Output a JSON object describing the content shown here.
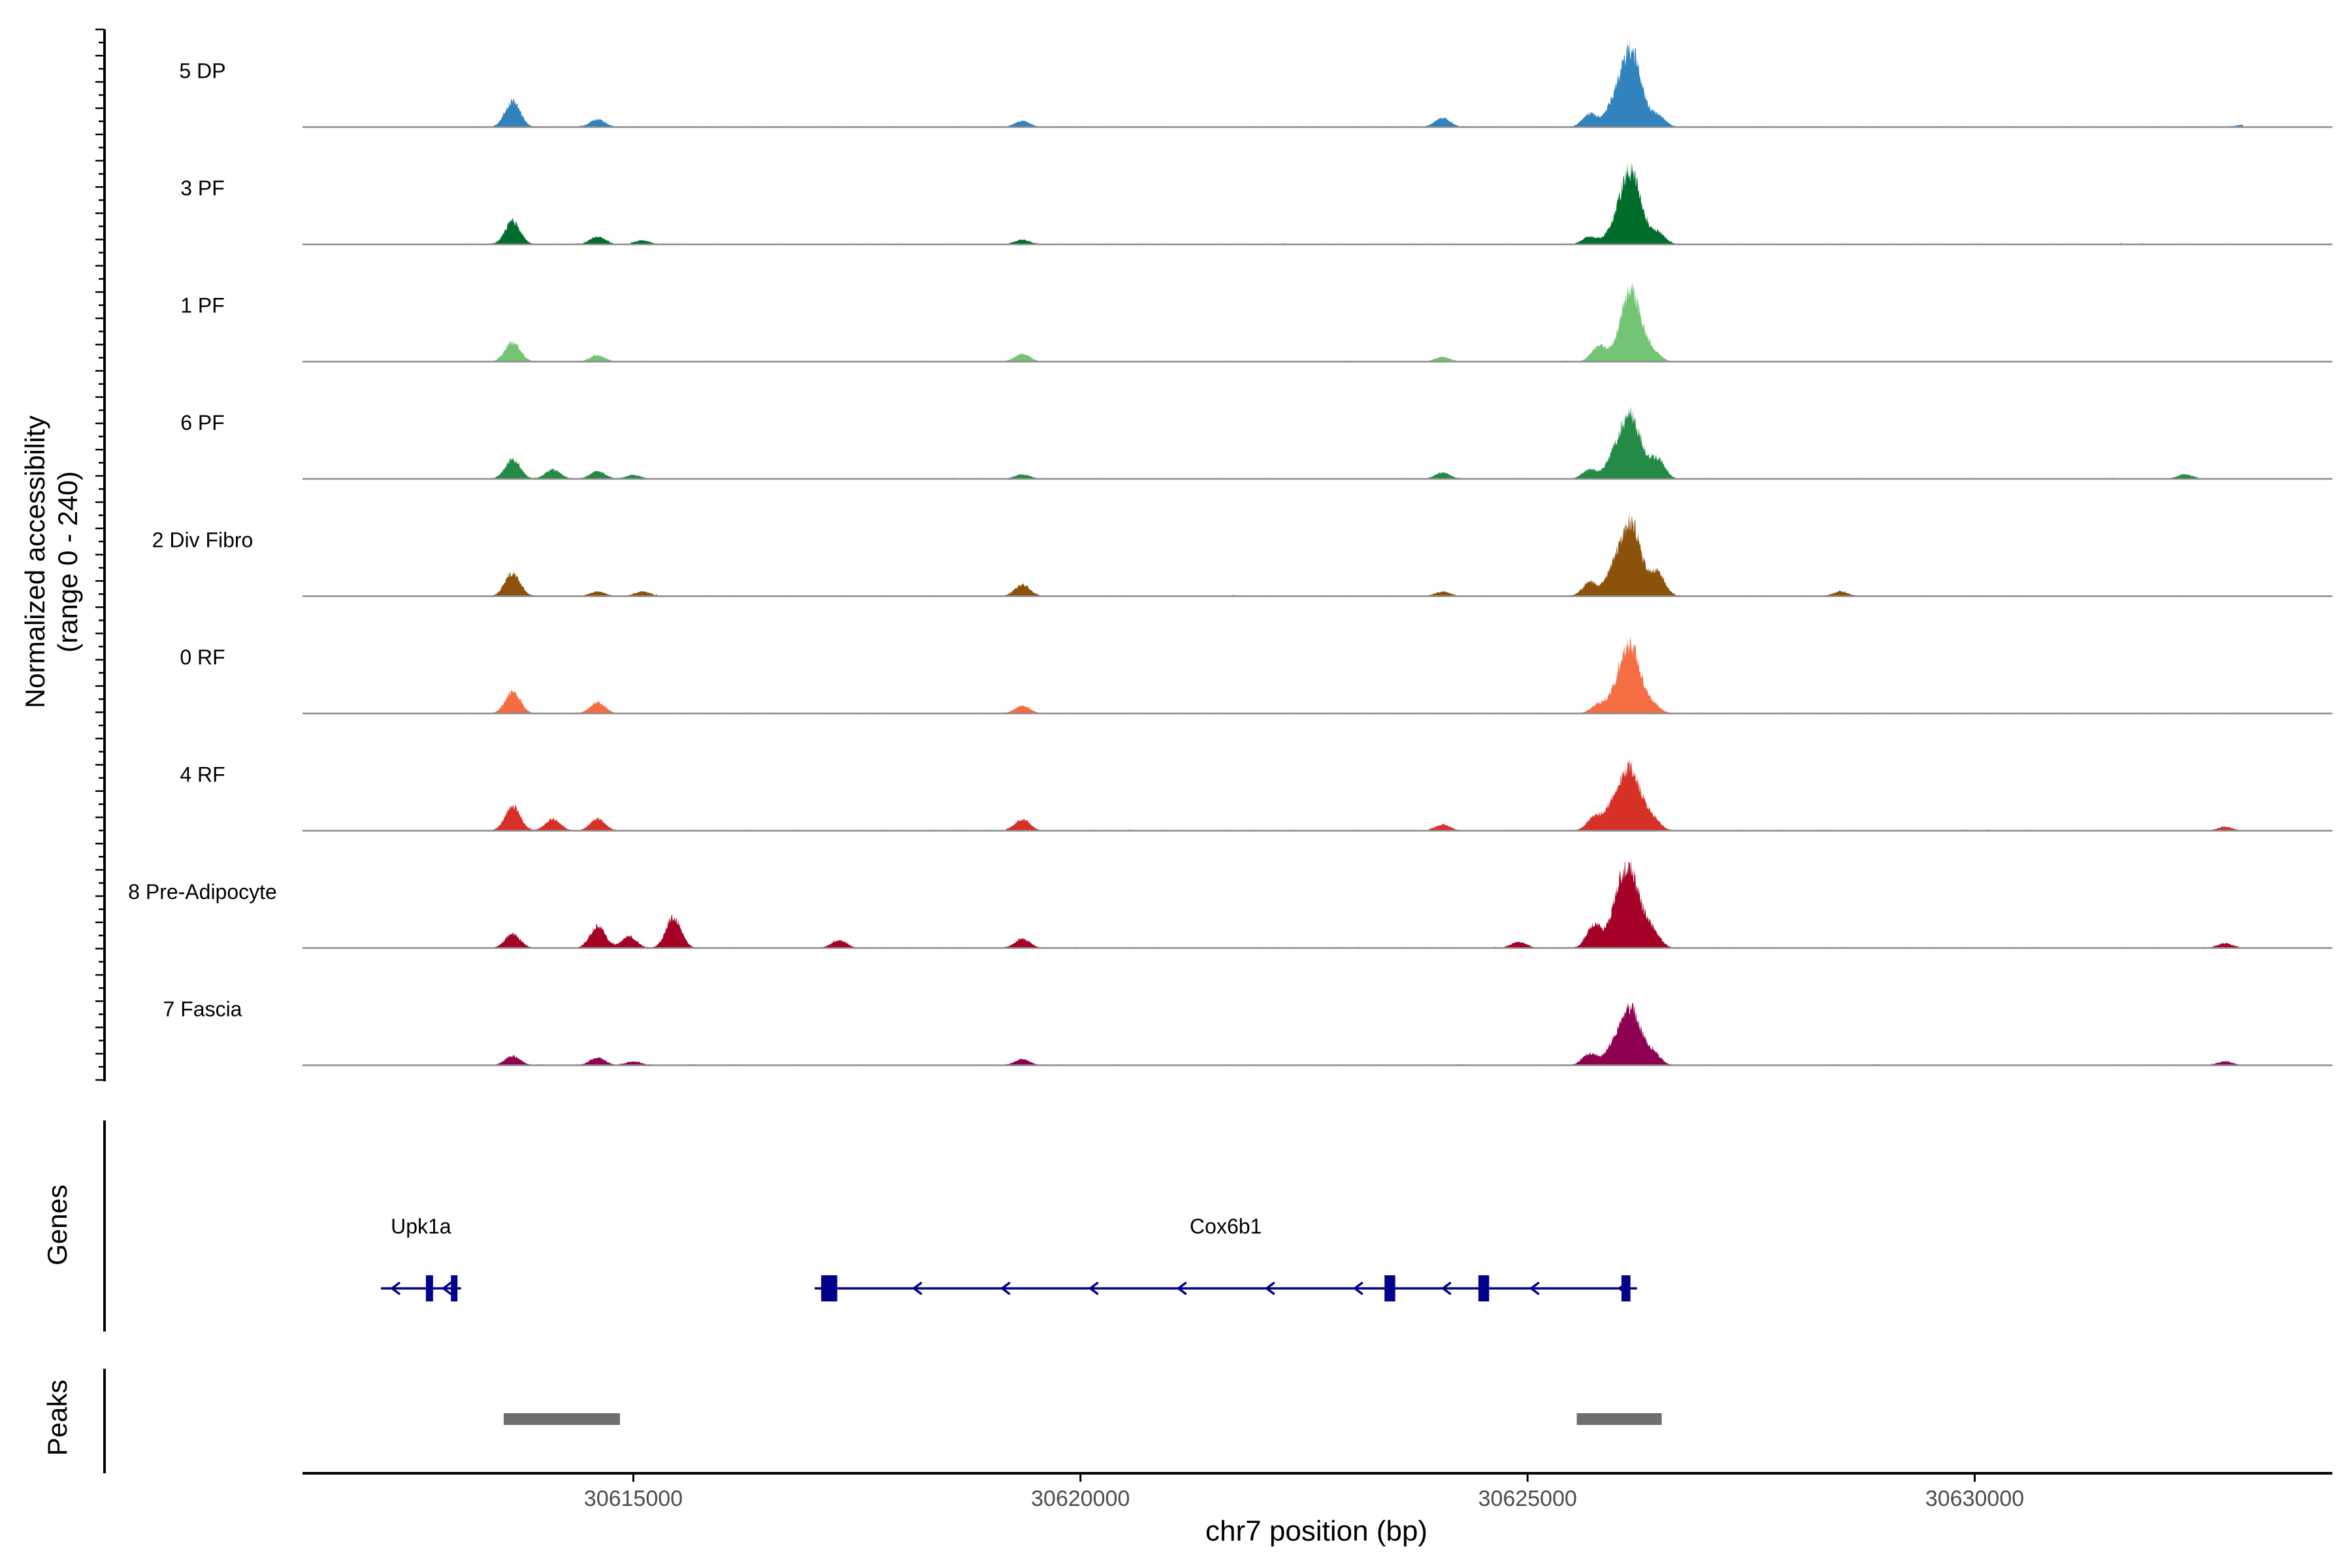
{
  "chart_data": {
    "type": "area",
    "ylabel_line1": "Normalized accessibility",
    "ylabel_line2": "(range 0 - 240)",
    "ylim": [
      0,
      240
    ],
    "xlabel": "chr7 position (bp)",
    "xlim": [
      30611300,
      30634000
    ],
    "x_ticks": [
      30615000,
      30620000,
      30625000,
      30630000
    ],
    "x_tick_labels": [
      "30615000",
      "30620000",
      "30625000",
      "30630000"
    ],
    "tracks": [
      {
        "name": "5 DP",
        "color": "#3182BD",
        "peaks": [
          [
            30613650,
            0.33
          ],
          [
            30614600,
            0.1
          ],
          [
            30619350,
            0.08
          ],
          [
            30624050,
            0.12
          ],
          [
            30625700,
            0.17
          ],
          [
            30625950,
            0.2
          ],
          [
            30626150,
            1.0
          ],
          [
            30626450,
            0.15
          ],
          [
            30633000,
            0.03
          ]
        ]
      },
      {
        "name": "3 PF",
        "color": "#006D2C",
        "peaks": [
          [
            30613650,
            0.3
          ],
          [
            30614600,
            0.1
          ],
          [
            30615100,
            0.05
          ],
          [
            30619350,
            0.06
          ],
          [
            30625700,
            0.1
          ],
          [
            30625950,
            0.12
          ],
          [
            30626150,
            0.95
          ],
          [
            30626450,
            0.15
          ]
        ]
      },
      {
        "name": "1 PF",
        "color": "#74C476",
        "peaks": [
          [
            30613650,
            0.25
          ],
          [
            30614600,
            0.08
          ],
          [
            30619350,
            0.1
          ],
          [
            30624050,
            0.06
          ],
          [
            30625800,
            0.2
          ],
          [
            30626150,
            0.92
          ],
          [
            30626400,
            0.12
          ]
        ]
      },
      {
        "name": "6 PF",
        "color": "#238B45",
        "peaks": [
          [
            30613650,
            0.25
          ],
          [
            30614100,
            0.12
          ],
          [
            30614600,
            0.1
          ],
          [
            30615000,
            0.05
          ],
          [
            30619350,
            0.06
          ],
          [
            30624050,
            0.08
          ],
          [
            30625700,
            0.12
          ],
          [
            30625950,
            0.2
          ],
          [
            30626150,
            0.82
          ],
          [
            30626450,
            0.25
          ],
          [
            30632350,
            0.06
          ]
        ]
      },
      {
        "name": "2 Div Fibro",
        "color": "#8C510A",
        "peaks": [
          [
            30613650,
            0.3
          ],
          [
            30614600,
            0.06
          ],
          [
            30615100,
            0.06
          ],
          [
            30619350,
            0.15
          ],
          [
            30624050,
            0.06
          ],
          [
            30625700,
            0.18
          ],
          [
            30625950,
            0.25
          ],
          [
            30626150,
            0.95
          ],
          [
            30626450,
            0.3
          ],
          [
            30628500,
            0.06
          ]
        ]
      },
      {
        "name": "0 RF",
        "color": "#F46D43",
        "peaks": [
          [
            30613650,
            0.28
          ],
          [
            30614600,
            0.14
          ],
          [
            30619350,
            0.1
          ],
          [
            30625800,
            0.12
          ],
          [
            30626000,
            0.15
          ],
          [
            30626150,
            0.85
          ],
          [
            30626400,
            0.1
          ]
        ]
      },
      {
        "name": "4 RF",
        "color": "#D73027",
        "peaks": [
          [
            30613650,
            0.32
          ],
          [
            30614100,
            0.15
          ],
          [
            30614600,
            0.15
          ],
          [
            30619350,
            0.15
          ],
          [
            30624050,
            0.08
          ],
          [
            30625750,
            0.18
          ],
          [
            30625950,
            0.25
          ],
          [
            30626150,
            0.8
          ],
          [
            30626400,
            0.15
          ],
          [
            30632800,
            0.05
          ]
        ]
      },
      {
        "name": "8 Pre-Adipocyte",
        "color": "#A50026",
        "peaks": [
          [
            30613650,
            0.18
          ],
          [
            30614600,
            0.28
          ],
          [
            30614950,
            0.15
          ],
          [
            30615450,
            0.4
          ],
          [
            30617300,
            0.1
          ],
          [
            30619350,
            0.12
          ],
          [
            30624900,
            0.08
          ],
          [
            30625750,
            0.3
          ],
          [
            30626000,
            0.35
          ],
          [
            30626150,
            0.95
          ],
          [
            30626400,
            0.2
          ],
          [
            30632800,
            0.06
          ]
        ]
      },
      {
        "name": "7 Fascia",
        "color": "#8E0152",
        "peaks": [
          [
            30613650,
            0.12
          ],
          [
            30614600,
            0.1
          ],
          [
            30615000,
            0.05
          ],
          [
            30619350,
            0.08
          ],
          [
            30625700,
            0.15
          ],
          [
            30625950,
            0.18
          ],
          [
            30626150,
            0.73
          ],
          [
            30626400,
            0.15
          ],
          [
            30632800,
            0.05
          ]
        ]
      }
    ],
    "genes_label": "Genes",
    "genes": [
      {
        "name": "Upk1a",
        "start": 30612250,
        "end": 30613000,
        "strand": "-",
        "exons": [
          [
            30612680,
            30612760
          ],
          [
            30612960,
            30613000
          ]
        ]
      },
      {
        "name": "Cox6b1",
        "start": 30617100,
        "end": 30626150,
        "strand": "-",
        "exons": [
          [
            30617100,
            30617280
          ],
          [
            30623400,
            30623520
          ],
          [
            30624450,
            30624570
          ],
          [
            30626050,
            30626150
          ]
        ]
      }
    ],
    "peaks_label": "Peaks",
    "peak_regions": [
      [
        30613550,
        30614850
      ],
      [
        30625550,
        30626500
      ]
    ]
  }
}
